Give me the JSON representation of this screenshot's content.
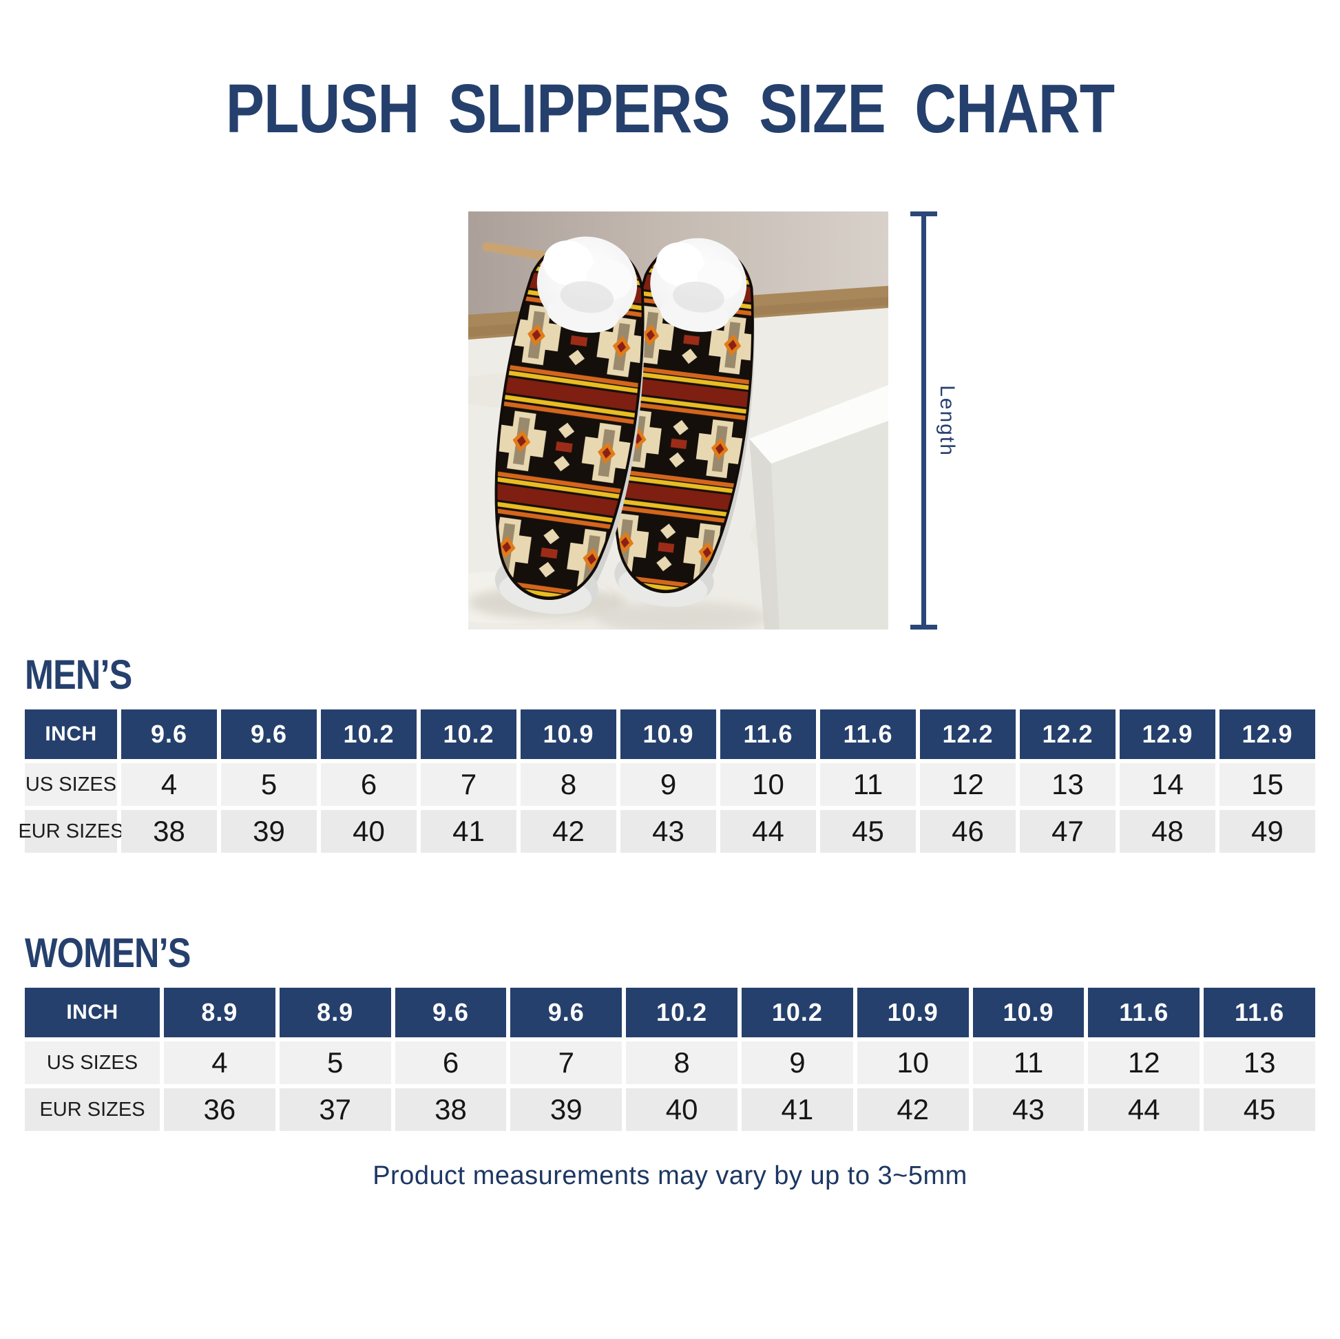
{
  "title": "PLUSH SLIPPERS SIZE CHART",
  "hero": {
    "length_label": "Length"
  },
  "note": "Product measurements may vary by up to 3~5mm",
  "colors": {
    "navy": "#25406d",
    "header_text": "#ffffff",
    "us_row_bg": "#f1f1f1",
    "eur_row_bg": "#eaeaea",
    "body_text": "#161616"
  },
  "chart_data": [
    {
      "type": "table",
      "title": "MEN’S",
      "row_labels": [
        "INCH",
        "US SIZES",
        "EUR SIZES"
      ],
      "inch": [
        "9.6",
        "9.6",
        "10.2",
        "10.2",
        "10.9",
        "10.9",
        "11.6",
        "11.6",
        "12.2",
        "12.2",
        "12.9",
        "12.9"
      ],
      "us_sizes": [
        "4",
        "5",
        "6",
        "7",
        "8",
        "9",
        "10",
        "11",
        "12",
        "13",
        "14",
        "15"
      ],
      "eur_sizes": [
        "38",
        "39",
        "40",
        "41",
        "42",
        "43",
        "44",
        "45",
        "46",
        "47",
        "48",
        "49"
      ]
    },
    {
      "type": "table",
      "title": "WOMEN’S",
      "row_labels": [
        "INCH",
        "US SIZES",
        "EUR SIZES"
      ],
      "inch": [
        "8.9",
        "8.9",
        "9.6",
        "9.6",
        "10.2",
        "10.2",
        "10.9",
        "10.9",
        "11.6",
        "11.6"
      ],
      "us_sizes": [
        "4",
        "5",
        "6",
        "7",
        "8",
        "9",
        "10",
        "11",
        "12",
        "13"
      ],
      "eur_sizes": [
        "36",
        "37",
        "38",
        "39",
        "40",
        "41",
        "42",
        "43",
        "44",
        "45"
      ]
    }
  ]
}
